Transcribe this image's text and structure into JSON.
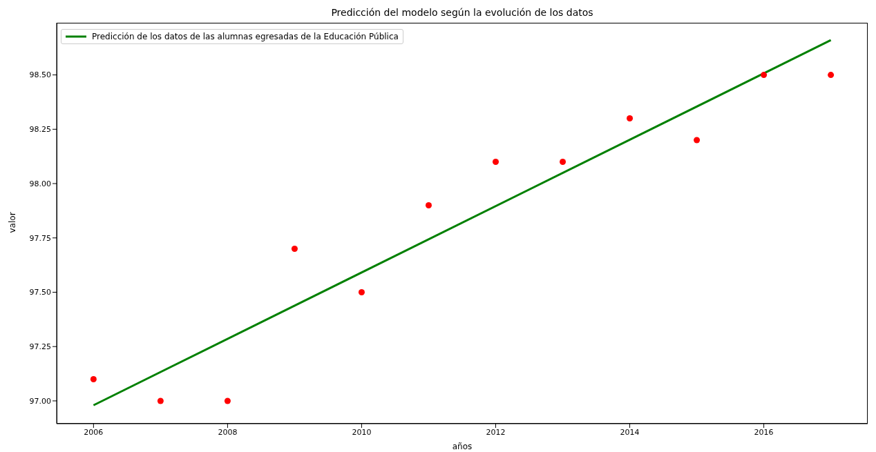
{
  "chart_data": {
    "type": "scatter",
    "title": "Predicción del modelo según la evolución de los datos",
    "xlabel": "años",
    "ylabel": "valor",
    "xlim": [
      2005.45,
      2017.55
    ],
    "ylim": [
      96.895,
      98.74
    ],
    "xticks": [
      2006,
      2008,
      2010,
      2012,
      2014,
      2016
    ],
    "yticks": [
      {
        "value": 97,
        "label": "97.00"
      },
      {
        "value": 97.25,
        "label": "97.25"
      },
      {
        "value": 97.5,
        "label": "97.50"
      },
      {
        "value": 97.75,
        "label": "97.75"
      },
      {
        "value": 98,
        "label": "98.00"
      },
      {
        "value": 98.25,
        "label": "98.25"
      },
      {
        "value": 98.5,
        "label": "98.50"
      }
    ],
    "grid": false,
    "legend": "top left",
    "marker": "circle",
    "series": [
      {
        "color": "#ff0000",
        "x": [
          2006,
          2007,
          2008,
          2009,
          2010,
          2011,
          2012,
          2013,
          2014,
          2015,
          2016,
          2017
        ],
        "values": [
          97.1,
          97.0,
          97.0,
          97.7,
          97.5,
          97.9,
          98.1,
          98.1,
          98.3,
          98.2,
          98.5,
          98.5
        ]
      },
      {
        "type": "line",
        "name": "Predicción de los datos de las alumnas egresadas de la Educación Pública",
        "color": "#008000",
        "line_style": "solid",
        "marker": "none",
        "x": [
          2006,
          2017
        ],
        "values": [
          96.98,
          98.66
        ]
      }
    ]
  }
}
